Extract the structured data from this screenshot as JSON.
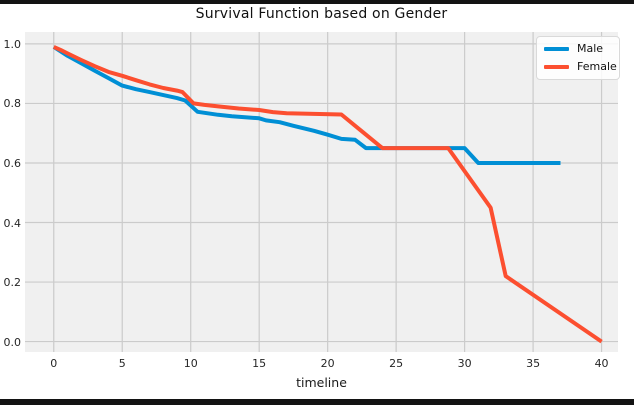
{
  "colors": {
    "figure_bg": "#ffffff",
    "axes_bg": "#f0f0f0",
    "grid": "#cbcbcb",
    "text": "#262626",
    "male_line": "#008fd5",
    "female_line": "#fc4f30",
    "screen_edge": "#131313",
    "legend_bg": "#fbfbfb"
  },
  "chart_data": {
    "type": "line",
    "title": "Survival Function based on Gender",
    "xlabel": "timeline",
    "ylabel": "",
    "grid": true,
    "legend_position": "upper right",
    "xlim": [
      -2.1,
      41.2
    ],
    "ylim": [
      -0.035,
      1.04
    ],
    "xticks": [
      0,
      5,
      10,
      15,
      20,
      25,
      30,
      35,
      40
    ],
    "xtick_labels": [
      "0",
      "5",
      "10",
      "15",
      "20",
      "25",
      "30",
      "35",
      "40"
    ],
    "yticks": [
      0.0,
      0.2,
      0.4,
      0.6,
      0.8,
      1.0
    ],
    "ytick_labels": [
      "0.0",
      "0.2",
      "0.4",
      "0.6",
      "0.8",
      "1.0"
    ],
    "series": [
      {
        "name": "Male",
        "color": "#008fd5",
        "points": [
          [
            0,
            0.99
          ],
          [
            0.5,
            0.975
          ],
          [
            1,
            0.96
          ],
          [
            2,
            0.935
          ],
          [
            3,
            0.91
          ],
          [
            4,
            0.885
          ],
          [
            5,
            0.86
          ],
          [
            6,
            0.848
          ],
          [
            7,
            0.838
          ],
          [
            8,
            0.828
          ],
          [
            9,
            0.818
          ],
          [
            9.6,
            0.81
          ],
          [
            10.5,
            0.772
          ],
          [
            12,
            0.762
          ],
          [
            13,
            0.757
          ],
          [
            15,
            0.75
          ],
          [
            15.5,
            0.743
          ],
          [
            16.5,
            0.737
          ],
          [
            17.5,
            0.725
          ],
          [
            19,
            0.708
          ],
          [
            20,
            0.695
          ],
          [
            21,
            0.681
          ],
          [
            22,
            0.678
          ],
          [
            22.8,
            0.65
          ],
          [
            30,
            0.65
          ],
          [
            31,
            0.6
          ],
          [
            37,
            0.6
          ]
        ]
      },
      {
        "name": "Female",
        "color": "#fc4f30",
        "points": [
          [
            0,
            0.99
          ],
          [
            0.5,
            0.98
          ],
          [
            1,
            0.968
          ],
          [
            2,
            0.946
          ],
          [
            3,
            0.925
          ],
          [
            4,
            0.906
          ],
          [
            5,
            0.893
          ],
          [
            6,
            0.878
          ],
          [
            7,
            0.864
          ],
          [
            8,
            0.852
          ],
          [
            9,
            0.843
          ],
          [
            9.4,
            0.838
          ],
          [
            10.2,
            0.8
          ],
          [
            11,
            0.795
          ],
          [
            12,
            0.79
          ],
          [
            13.5,
            0.783
          ],
          [
            15,
            0.778
          ],
          [
            16,
            0.771
          ],
          [
            17,
            0.767
          ],
          [
            21,
            0.763
          ],
          [
            22.4,
            0.71
          ],
          [
            24,
            0.65
          ],
          [
            28.8,
            0.65
          ],
          [
            31.9,
            0.45
          ],
          [
            33,
            0.22
          ],
          [
            40,
            0.0
          ]
        ]
      }
    ]
  }
}
